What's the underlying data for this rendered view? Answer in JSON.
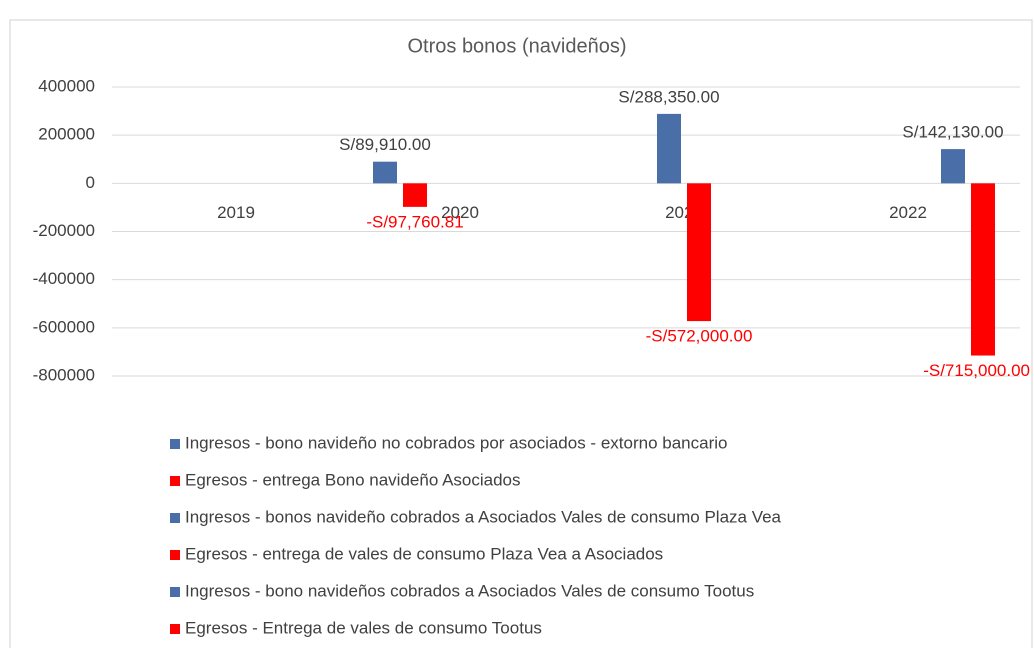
{
  "chart_data": {
    "type": "bar",
    "title": "Otros bonos (navideños)",
    "categories": [
      "2019",
      "2020",
      "2021",
      "2022"
    ],
    "series": [
      {
        "name": "Ingresos - bono navideño no cobrados por asociados - extorno bancario",
        "color": "#4a6fa8",
        "values": [
          null,
          89910,
          null,
          null
        ],
        "value_labels": [
          null,
          "S/89,910.00",
          null,
          null
        ]
      },
      {
        "name": "Egresos - entrega Bono navideño Asociados",
        "color": "#ff0000",
        "values": [
          null,
          -97760.81,
          null,
          null
        ],
        "value_labels": [
          null,
          "-S/97,760.81",
          null,
          null
        ]
      },
      {
        "name": "Ingresos - bonos navideño cobrados a Asociados Vales de consumo Plaza Vea",
        "color": "#4a6fa8",
        "values": [
          null,
          null,
          288350,
          null
        ],
        "value_labels": [
          null,
          null,
          "S/288,350.00",
          null
        ]
      },
      {
        "name": "Egresos - entrega de vales de consumo Plaza Vea a Asociados",
        "color": "#ff0000",
        "values": [
          null,
          null,
          -572000,
          null
        ],
        "value_labels": [
          null,
          null,
          "-S/572,000.00",
          null
        ]
      },
      {
        "name": "Ingresos - bono navideños cobrados a Asociados Vales de consumo Tootus",
        "color": "#4a6fa8",
        "values": [
          null,
          null,
          null,
          142130
        ],
        "value_labels": [
          null,
          null,
          null,
          "S/142,130.00"
        ]
      },
      {
        "name": "Egresos - Entrega de vales de consumo Tootus",
        "color": "#ff0000",
        "values": [
          null,
          null,
          null,
          -715000
        ],
        "value_labels": [
          null,
          null,
          null,
          "-S/715,000.00"
        ]
      }
    ],
    "ylim": [
      -800000,
      400000
    ],
    "yticks": [
      -800000,
      -600000,
      -400000,
      -200000,
      0,
      200000,
      400000
    ],
    "grid": true,
    "legend": "bottom"
  }
}
